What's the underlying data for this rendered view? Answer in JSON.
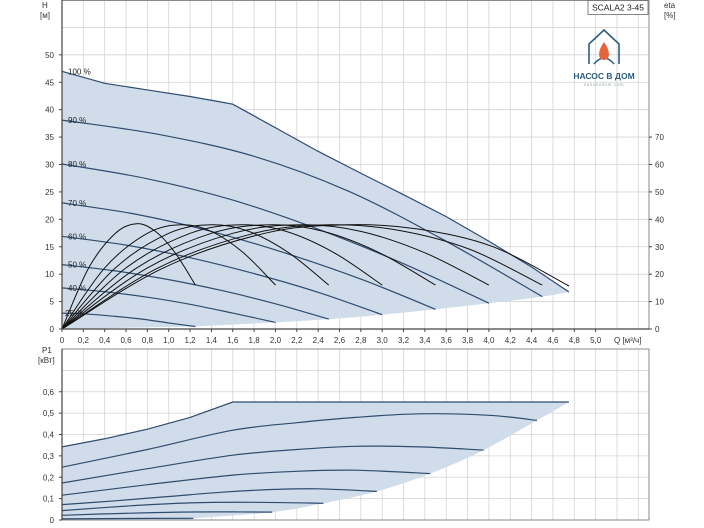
{
  "model_label": "SCALA2 3-45",
  "logo": {
    "name": "НАСОС В ДОМ",
    "site": "nasosvdom.com",
    "flame_color": "#e8623a",
    "brand_color": "#2d5e80"
  },
  "colors": {
    "fill": "#d0dce9",
    "speed_curve": "#2f4c6e",
    "efficiency_curve": "#111111",
    "grid": "#d4d4d4",
    "frame": "#8a8a8a"
  },
  "chart_data": [
    {
      "type": "line",
      "xlabel": "Q [м³/ч]",
      "ylabel": {
        "name": "H",
        "unit": "[м]"
      },
      "y2label": {
        "name": "eta",
        "unit": "[%]"
      },
      "xlim": [
        0,
        5.5
      ],
      "ylim": [
        0,
        60
      ],
      "y2lim": [
        0,
        120
      ],
      "grid": true,
      "xticks": [
        0,
        0.2,
        0.4,
        0.6,
        0.8,
        1.0,
        1.2,
        1.4,
        1.6,
        1.8,
        2.0,
        2.2,
        2.4,
        2.6,
        2.8,
        3.0,
        3.2,
        3.4,
        3.6,
        3.8,
        4.0,
        4.2,
        4.4,
        4.6,
        4.8,
        5.0
      ],
      "xtick_labels": [
        "0",
        "0,2",
        "0,4",
        "0,6",
        "0,8",
        "1,0",
        "1,2",
        "1,4",
        "1,6",
        "1,8",
        "2,0",
        "2,2",
        "2,4",
        "2,6",
        "2,8",
        "3,0",
        "3,2",
        "3,4",
        "3,6",
        "3,8",
        "4,0",
        "4,2",
        "4,4",
        "4,6",
        "4,8",
        "5,0"
      ],
      "yticks": [
        0,
        5,
        10,
        15,
        20,
        25,
        30,
        35,
        40,
        45,
        50
      ],
      "ytick_labels": [
        "0",
        "5",
        "10",
        "15",
        "20",
        "25",
        "30",
        "35",
        "40",
        "45",
        "50"
      ],
      "y2ticks": [
        0,
        10,
        20,
        30,
        40,
        50,
        60,
        70
      ],
      "y2tick_labels": [
        "0",
        "10",
        "20",
        "30",
        "40",
        "50",
        "60",
        "70"
      ],
      "head_series": [
        {
          "name": "100 %",
          "q": [
            0,
            0.4,
            0.8,
            1.2,
            1.6,
            2.0,
            2.4,
            2.8,
            3.2,
            3.6,
            4.0,
            4.4,
            4.75
          ],
          "h": [
            47,
            44.8,
            43.6,
            42.4,
            41,
            36.7,
            32.4,
            28.4,
            24.5,
            20.5,
            16,
            11.3,
            6.75
          ]
        },
        {
          "name": "90 %",
          "q": [
            0,
            0.9,
            1.8,
            2.7,
            3.6,
            4.5
          ],
          "h": [
            38.1,
            35.5,
            31.5,
            25,
            16,
            5.9
          ]
        },
        {
          "name": "80 %",
          "q": [
            0,
            0.8,
            1.6,
            2.4,
            3.2,
            4.0
          ],
          "h": [
            30.1,
            27.4,
            23.5,
            18.2,
            11.9,
            4.7
          ]
        },
        {
          "name": "70 %",
          "q": [
            0,
            0.7,
            1.4,
            2.1,
            2.8,
            3.5
          ],
          "h": [
            23,
            20.9,
            17.8,
            13.8,
            9.1,
            3.6
          ]
        },
        {
          "name": "60 %",
          "q": [
            0,
            0.6,
            1.2,
            1.8,
            2.4,
            3.0
          ],
          "h": [
            16.9,
            15.3,
            13,
            10.1,
            6.7,
            2.6
          ]
        },
        {
          "name": "50 %",
          "q": [
            0,
            0.5,
            1.0,
            1.5,
            2.0,
            2.5
          ],
          "h": [
            11.75,
            10.6,
            9,
            7,
            4.6,
            1.8
          ]
        },
        {
          "name": "40 %",
          "q": [
            0,
            0.4,
            0.8,
            1.2,
            1.6,
            2.0
          ],
          "h": [
            7.5,
            6.8,
            5.8,
            4.5,
            2.9,
            1.2
          ]
        },
        {
          "name": "25 %",
          "q": [
            0,
            0.25,
            0.5,
            0.75,
            1.0,
            1.25
          ],
          "h": [
            2.9,
            2.7,
            2.3,
            1.8,
            1.1,
            0.45
          ]
        }
      ],
      "efficiency_series": [
        {
          "q": [
            0,
            0.25,
            0.5,
            0.7,
            0.875,
            1.06,
            1.25
          ],
          "eta": [
            0,
            22.3,
            34.9,
            38.4,
            35.6,
            27.8,
            16
          ]
        },
        {
          "q": [
            0,
            0.4,
            0.8,
            1.12,
            1.4,
            1.7,
            2.0
          ],
          "eta": [
            0,
            22.3,
            34.9,
            38,
            35.6,
            27.8,
            16
          ]
        },
        {
          "q": [
            0,
            0.5,
            1.0,
            1.4,
            1.75,
            2.125,
            2.5
          ],
          "eta": [
            0,
            22.3,
            34.9,
            38,
            35.6,
            27.8,
            16
          ]
        },
        {
          "q": [
            0,
            0.6,
            1.2,
            1.68,
            2.1,
            2.55,
            3.0
          ],
          "eta": [
            0,
            22.3,
            34.9,
            38,
            35.6,
            27.8,
            16
          ]
        },
        {
          "q": [
            0,
            0.7,
            1.4,
            1.96,
            2.45,
            2.975,
            3.5
          ],
          "eta": [
            0,
            22.3,
            34.9,
            38,
            35.6,
            27.8,
            16
          ]
        },
        {
          "q": [
            0,
            0.8,
            1.6,
            2.24,
            2.8,
            3.4,
            4.0
          ],
          "eta": [
            0,
            22.3,
            34.9,
            38,
            35.6,
            27.8,
            16
          ]
        },
        {
          "q": [
            0,
            0.9,
            1.8,
            2.52,
            3.15,
            3.825,
            4.5
          ],
          "eta": [
            0,
            22.3,
            34.9,
            38,
            36,
            29,
            16
          ]
        },
        {
          "q": [
            0,
            0.95,
            1.9,
            2.66,
            3.325,
            4.04,
            4.75
          ],
          "eta": [
            0,
            22.3,
            34.9,
            38,
            36.5,
            30,
            15.7
          ]
        }
      ]
    },
    {
      "type": "line",
      "ylabel": {
        "name": "P1",
        "unit": "[кВт]"
      },
      "xlim": [
        0,
        5.5
      ],
      "ylim": [
        0,
        0.8
      ],
      "grid": true,
      "yticks": [
        0,
        0.1,
        0.2,
        0.3,
        0.4,
        0.5,
        0.6
      ],
      "ytick_labels": [
        "0",
        "0,1",
        "0,2",
        "0,3",
        "0,4",
        "0,5",
        "0,6"
      ],
      "power_series": [
        {
          "q": [
            0,
            0.4,
            0.8,
            1.2,
            1.6,
            2.5,
            3.5,
            4.75
          ],
          "p": [
            0.342,
            0.38,
            0.425,
            0.48,
            0.552,
            0.552,
            0.552,
            0.552
          ]
        },
        {
          "q": [
            0,
            0.8,
            1.6,
            2.2,
            2.75,
            3.35,
            4.0,
            4.45
          ],
          "p": [
            0.247,
            0.33,
            0.42,
            0.455,
            0.48,
            0.497,
            0.49,
            0.466
          ]
        },
        {
          "q": [
            0,
            0.8,
            1.6,
            2.2,
            2.75,
            3.35,
            3.95
          ],
          "p": [
            0.173,
            0.24,
            0.303,
            0.33,
            0.345,
            0.342,
            0.327
          ]
        },
        {
          "q": [
            0,
            0.8,
            1.6,
            2.2,
            2.75,
            3.45
          ],
          "p": [
            0.116,
            0.165,
            0.21,
            0.228,
            0.233,
            0.217
          ]
        },
        {
          "q": [
            0,
            0.5,
            1.0,
            1.5,
            2.0,
            2.4,
            2.95
          ],
          "p": [
            0.072,
            0.09,
            0.11,
            0.13,
            0.143,
            0.146,
            0.134
          ]
        },
        {
          "q": [
            0,
            0.6,
            1.2,
            1.75,
            2.45
          ],
          "p": [
            0.044,
            0.065,
            0.08,
            0.083,
            0.078
          ]
        },
        {
          "q": [
            0,
            0.5,
            1.1,
            1.6,
            1.97
          ],
          "p": [
            0.022,
            0.03,
            0.037,
            0.038,
            0.037
          ]
        },
        {
          "q": [
            0,
            0.6,
            1.23
          ],
          "p": [
            0.005,
            0.007,
            0.008
          ]
        }
      ]
    }
  ]
}
